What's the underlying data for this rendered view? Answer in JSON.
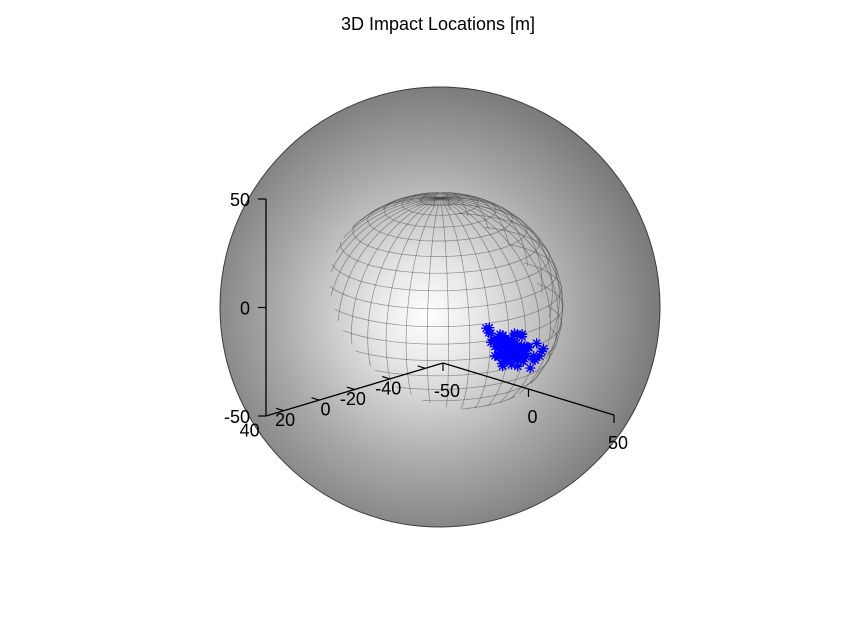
{
  "chart_data": {
    "type": "scatter",
    "title": "3D Impact Locations [m]",
    "xlabel": "",
    "ylabel": "",
    "zlabel": "",
    "sphere": {
      "radius": 50,
      "center": [
        0,
        0,
        0
      ],
      "color": "#808080",
      "meridians": 36,
      "parallels": 20
    },
    "axes": {
      "x": {
        "range": [
          -50,
          50
        ],
        "ticks": [
          -50,
          0,
          50
        ],
        "tick_labels": [
          "-50",
          "0",
          "50"
        ]
      },
      "y": {
        "range": [
          -50,
          50
        ],
        "ticks": [
          40,
          20,
          0,
          -20,
          -40
        ],
        "tick_labels": [
          "40",
          "20",
          "0",
          "-20",
          "-40"
        ]
      },
      "z": {
        "range": [
          -50,
          50
        ],
        "ticks": [
          50,
          0,
          -50
        ],
        "tick_labels": [
          "50",
          "0",
          "-50"
        ]
      }
    },
    "grid": true,
    "grid_style": "dotted",
    "marker": {
      "symbol": "asterisk",
      "color": "#0000ff"
    },
    "points": [
      [
        -14.0,
        -39.6,
        -22.8
      ],
      [
        -12.8,
        -40.2,
        -22.4
      ],
      [
        -11.7,
        -38.8,
        -24.2
      ],
      [
        -10.9,
        -39.3,
        -24.3
      ],
      [
        -9.0,
        -37.5,
        -27.6
      ],
      [
        -8.2,
        -38.5,
        -26.4
      ],
      [
        -7.9,
        -38.1,
        -27.0
      ],
      [
        -7.4,
        -38.4,
        -26.7
      ],
      [
        -7.1,
        -38.4,
        -26.8
      ],
      [
        -6.6,
        -40.3,
        -24.0
      ],
      [
        -6.4,
        -39.5,
        -25.1
      ],
      [
        -6.2,
        -37.1,
        -28.8
      ],
      [
        -6.0,
        -39.6,
        -25.1
      ],
      [
        -5.2,
        -39.4,
        -25.7
      ],
      [
        -5.1,
        -39.2,
        -26.0
      ],
      [
        -5.1,
        -40.3,
        -24.1
      ],
      [
        -4.9,
        -38.1,
        -27.8
      ],
      [
        -4.9,
        -39.0,
        -26.3
      ],
      [
        -4.8,
        -40.2,
        -24.3
      ],
      [
        -4.7,
        -39.2,
        -26.0
      ],
      [
        -4.5,
        -36.9,
        -29.4
      ],
      [
        -4.3,
        -38.8,
        -26.7
      ],
      [
        -4.0,
        -34.9,
        -32.0
      ],
      [
        -3.5,
        -39.6,
        -25.6
      ],
      [
        -3.3,
        -38.7,
        -27.0
      ],
      [
        -3.2,
        -37.6,
        -28.6
      ],
      [
        -3.0,
        -36.3,
        -30.4
      ],
      [
        -2.9,
        -39.6,
        -25.8
      ],
      [
        -2.4,
        -35.2,
        -31.8
      ],
      [
        -2.3,
        -39.5,
        -26.0
      ],
      [
        -1.9,
        -36.3,
        -30.6
      ],
      [
        -1.8,
        -36.1,
        -30.8
      ],
      [
        -1.8,
        -35.1,
        -32.0
      ],
      [
        -1.7,
        -37.6,
        -28.8
      ],
      [
        -1.4,
        -38.5,
        -27.6
      ],
      [
        -1.2,
        -40.0,
        -25.3
      ],
      [
        -1.1,
        -39.6,
        -26.0
      ],
      [
        -0.9,
        -37.1,
        -29.6
      ],
      [
        -0.8,
        -39.2,
        -26.6
      ],
      [
        -0.7,
        -35.5,
        -31.6
      ],
      [
        -0.6,
        -38.3,
        -27.9
      ],
      [
        -0.4,
        -39.2,
        -26.6
      ],
      [
        -0.1,
        -37.4,
        -29.3
      ],
      [
        -0.1,
        -37.9,
        -28.5
      ],
      [
        0.0,
        -36.6,
        -30.3
      ],
      [
        0.0,
        -40.3,
        -24.7
      ],
      [
        0.4,
        -41.7,
        -22.3
      ],
      [
        0.5,
        -36.9,
        -29.9
      ],
      [
        0.7,
        -36.7,
        -30.1
      ],
      [
        0.8,
        -41.4,
        -22.8
      ],
      [
        0.9,
        -38.8,
        -27.3
      ],
      [
        1.0,
        -39.4,
        -26.3
      ],
      [
        1.0,
        -37.6,
        -28.9
      ],
      [
        1.1,
        -36.1,
        -31.0
      ],
      [
        1.1,
        -38.4,
        -27.8
      ],
      [
        1.3,
        -33.7,
        -34.0
      ],
      [
        1.3,
        -36.4,
        -30.6
      ],
      [
        1.8,
        -39.4,
        -26.3
      ],
      [
        1.8,
        -39.3,
        -26.5
      ],
      [
        2.0,
        -41.8,
        -22.3
      ],
      [
        2.1,
        -34.6,
        -32.9
      ],
      [
        2.1,
        -35.0,
        -32.3
      ],
      [
        2.2,
        -39.7,
        -25.9
      ],
      [
        2.2,
        -38.7,
        -27.4
      ],
      [
        2.3,
        -35.6,
        -31.6
      ],
      [
        2.5,
        -33.0,
        -34.7
      ],
      [
        2.6,
        -37.4,
        -29.3
      ],
      [
        3.3,
        -35.7,
        -31.6
      ],
      [
        3.4,
        -39.9,
        -25.6
      ],
      [
        3.5,
        -37.5,
        -29.1
      ],
      [
        3.8,
        -38.0,
        -28.4
      ],
      [
        4.1,
        -36.2,
        -30.9
      ],
      [
        4.3,
        -37.3,
        -29.4
      ],
      [
        4.4,
        -42.2,
        -21.8
      ],
      [
        4.6,
        -37.6,
        -29.0
      ],
      [
        4.8,
        -38.9,
        -27.0
      ],
      [
        4.9,
        -41.6,
        -22.7
      ],
      [
        5.3,
        -34.9,
        -32.5
      ],
      [
        5.5,
        -38.8,
        -27.2
      ],
      [
        5.8,
        -37.8,
        -28.6
      ],
      [
        6.0,
        -38.2,
        -28.0
      ],
      [
        6.3,
        -39.2,
        -26.5
      ],
      [
        6.5,
        -34.2,
        -33.3
      ],
      [
        6.6,
        -38.7,
        -27.3
      ],
      [
        6.8,
        -39.4,
        -26.3
      ],
      [
        7.2,
        -36.8,
        -29.9
      ],
      [
        7.5,
        -36.1,
        -30.8
      ],
      [
        7.5,
        -37.7,
        -28.7
      ],
      [
        7.5,
        -36.4,
        -30.4
      ],
      [
        7.6,
        -37.3,
        -29.3
      ],
      [
        7.9,
        -38.4,
        -27.6
      ],
      [
        8.0,
        -38.4,
        -27.6
      ],
      [
        8.3,
        -36.1,
        -30.7
      ],
      [
        8.3,
        -39.6,
        -25.8
      ],
      [
        8.9,
        -38.0,
        -28.1
      ],
      [
        9.5,
        -37.3,
        -29.0
      ],
      [
        9.8,
        -39.6,
        -25.6
      ],
      [
        10.2,
        -35.9,
        -30.7
      ],
      [
        10.2,
        -35.7,
        -31.0
      ],
      [
        10.4,
        -33.9,
        -33.1
      ],
      [
        10.8,
        -39.4,
        -25.7
      ],
      [
        11.0,
        -37.8,
        -28.1
      ],
      [
        11.3,
        -39.4,
        -25.6
      ],
      [
        12.0,
        -35.5,
        -30.9
      ],
      [
        12.2,
        -36.9,
        -29.1
      ],
      [
        14.7,
        -40.4,
        -23.1
      ],
      [
        16.6,
        -36.9,
        -27.6
      ],
      [
        17.8,
        -36.0,
        -28.3
      ],
      [
        18.9,
        -32.7,
        -31.6
      ],
      [
        19.0,
        -35.4,
        -28.5
      ],
      [
        20.2,
        -37.9,
        -24.8
      ],
      [
        20.5,
        -36.4,
        -26.6
      ],
      [
        20.6,
        -38.5,
        -23.7
      ]
    ]
  }
}
